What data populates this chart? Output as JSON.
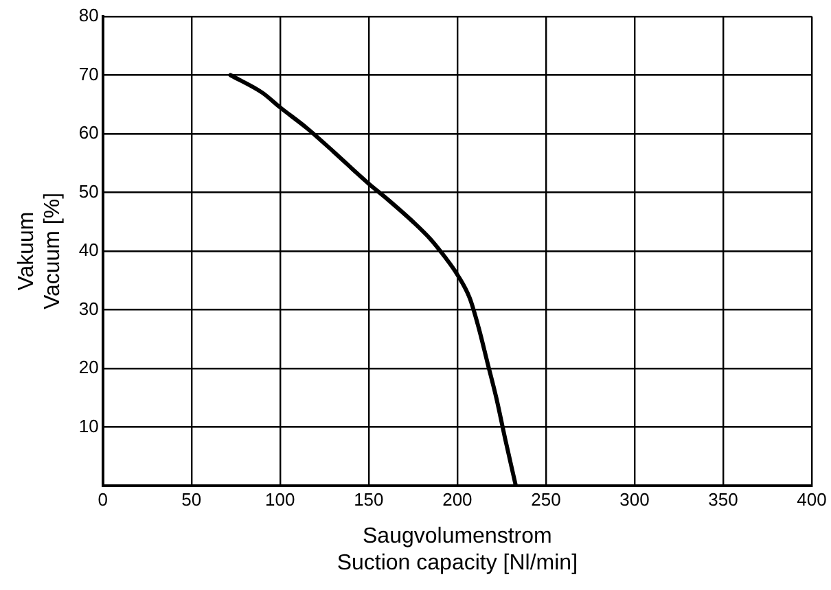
{
  "chart_data": {
    "type": "line",
    "xlabel": "Saugvolumenstrom\nSuction capacity [Nl/min]",
    "ylabel": "Vakuum\nVacuum [%]",
    "xlim": [
      0,
      400
    ],
    "xticks": [
      0,
      50,
      100,
      150,
      200,
      250,
      300,
      350,
      400
    ],
    "ylim": [
      0,
      80
    ],
    "yticks": [
      {
        "value": 0,
        "label": null
      },
      10,
      20,
      30,
      40,
      50,
      60,
      70,
      80
    ],
    "grid": true,
    "legend": false,
    "marker": "none",
    "line_style": "solid",
    "series": [
      {
        "color": "#000000",
        "x": [
          72,
          90,
          100,
          115,
          130,
          150,
          160,
          175,
          185,
          193,
          200,
          207,
          212,
          217,
          222,
          227,
          230,
          233
        ],
        "values": [
          70,
          67,
          64.5,
          61,
          57,
          51.5,
          49,
          45,
          42,
          39,
          36,
          32,
          27,
          21,
          15,
          8,
          4,
          0
        ]
      }
    ]
  }
}
